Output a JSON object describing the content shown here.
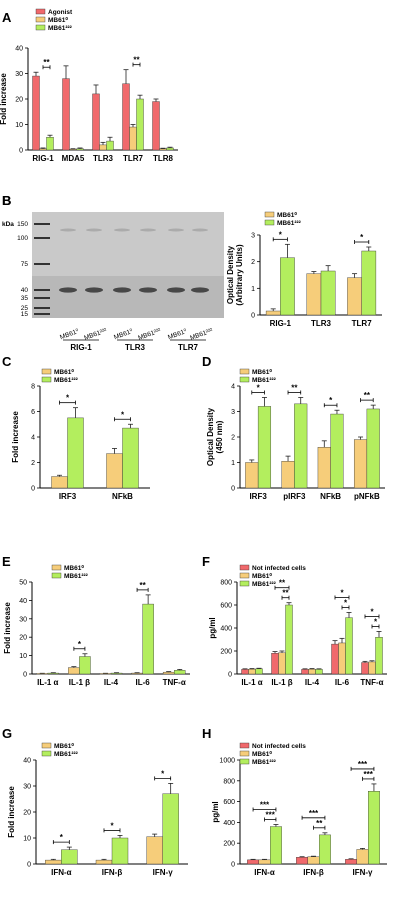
{
  "colors": {
    "agonist": "#f0696c",
    "mb61_0": "#f6cd7a",
    "mb61_222": "#b3ee5e",
    "not_infected": "#f0696c",
    "blot_bg": "#c9c9c9"
  },
  "panels": {
    "A": {
      "label": "A",
      "ylabel": "Fold increase",
      "legend": [
        "Agonist",
        "MB61⁰",
        "MB61²²²"
      ]
    },
    "B": {
      "label": "B",
      "kda_label": "kDa",
      "kda_markers": [
        "150",
        "100",
        "75",
        "40",
        "35",
        "25",
        "15"
      ],
      "lane_labels": [
        "MB61⁰",
        "MB61²²²",
        "MB61⁰",
        "MB61²²²",
        "MB61⁰",
        "MB61²²²"
      ],
      "group_labels": [
        "RIG-1",
        "TLR3",
        "TLR7"
      ],
      "ylabel": "Optical Density (Arbitrary Units)",
      "ylabel_lines": [
        "Optical Density",
        "(Arbitrary Units)"
      ],
      "legend": [
        "MB61⁰",
        "MB61²²²"
      ]
    },
    "C": {
      "label": "C",
      "ylabel": "Fold increase",
      "legend": [
        "MB61⁰",
        "MB61²²²"
      ]
    },
    "D": {
      "label": "D",
      "ylabel": "Optical Density (450 nm)",
      "ylabel_lines": [
        "Optical Density",
        "(450 nm)"
      ],
      "legend": [
        "MB61⁰",
        "MB61²²²"
      ]
    },
    "E": {
      "label": "E",
      "ylabel": "Fold increase",
      "legend": [
        "MB61⁰",
        "MB61²²²"
      ]
    },
    "F": {
      "label": "F",
      "ylabel": "pg/ml",
      "legend": [
        "Not infected cells",
        "MB61⁰",
        "MB61²²²"
      ]
    },
    "G": {
      "label": "G",
      "ylabel": "Fold increase",
      "legend": [
        "MB61⁰",
        "MB61²²²"
      ]
    },
    "H": {
      "label": "H",
      "ylabel": "pg/ml",
      "legend": [
        "Not infected cells",
        "MB61⁰",
        "MB61²²²"
      ]
    }
  },
  "chart_data": [
    {
      "panel": "A",
      "type": "bar",
      "categories": [
        "RIG-1",
        "MDA5",
        "TLR3",
        "TLR7",
        "TLR8"
      ],
      "ylim": [
        0,
        40
      ],
      "yticks": [
        0,
        10,
        20,
        30,
        40
      ],
      "series": [
        {
          "name": "Agonist",
          "values": [
            29,
            28,
            22,
            26,
            19
          ],
          "errors": [
            1.5,
            5,
            3.5,
            5.5,
            1
          ]
        },
        {
          "name": "MB61⁰",
          "values": [
            0.5,
            0.3,
            2,
            9,
            0.5
          ],
          "errors": [
            0.3,
            0.2,
            1,
            1,
            0.2
          ]
        },
        {
          "name": "MB61²²²",
          "values": [
            5,
            0.5,
            3.5,
            20,
            0.8
          ],
          "errors": [
            0.8,
            0.3,
            1.5,
            1.5,
            0.3
          ]
        }
      ],
      "significance": [
        {
          "category": "RIG-1",
          "label": "**"
        },
        {
          "category": "TLR7",
          "label": "**"
        }
      ]
    },
    {
      "panel": "B",
      "type": "bar",
      "categories": [
        "RIG-1",
        "TLR3",
        "TLR7"
      ],
      "ylim": [
        0,
        3
      ],
      "yticks": [
        0,
        1,
        2,
        3
      ],
      "series": [
        {
          "name": "MB61⁰",
          "values": [
            0.15,
            1.55,
            1.4
          ],
          "errors": [
            0.08,
            0.08,
            0.15
          ]
        },
        {
          "name": "MB61²²²",
          "values": [
            2.15,
            1.65,
            2.4
          ],
          "errors": [
            0.5,
            0.2,
            0.15
          ]
        }
      ],
      "significance": [
        {
          "category": "RIG-1",
          "label": "*"
        },
        {
          "category": "TLR7",
          "label": "*"
        }
      ]
    },
    {
      "panel": "C",
      "type": "bar",
      "categories": [
        "IRF3",
        "NFkB"
      ],
      "ylim": [
        0,
        8
      ],
      "yticks": [
        0,
        2,
        4,
        6,
        8
      ],
      "series": [
        {
          "name": "MB61⁰",
          "values": [
            0.9,
            2.7
          ],
          "errors": [
            0.1,
            0.4
          ]
        },
        {
          "name": "MB61²²²",
          "values": [
            5.5,
            4.7
          ],
          "errors": [
            0.8,
            0.3
          ]
        }
      ],
      "significance": [
        {
          "category": "IRF3",
          "label": "*"
        },
        {
          "category": "NFkB",
          "label": "*"
        }
      ]
    },
    {
      "panel": "D",
      "type": "bar",
      "categories": [
        "IRF3",
        "pIRF3",
        "NFkB",
        "pNFkB"
      ],
      "ylim": [
        0,
        4
      ],
      "yticks": [
        0,
        1,
        2,
        3,
        4
      ],
      "series": [
        {
          "name": "MB61⁰",
          "values": [
            1.0,
            1.05,
            1.6,
            1.9
          ],
          "errors": [
            0.1,
            0.2,
            0.25,
            0.1
          ]
        },
        {
          "name": "MB61²²²",
          "values": [
            3.2,
            3.3,
            2.9,
            3.1
          ],
          "errors": [
            0.35,
            0.25,
            0.15,
            0.15
          ]
        }
      ],
      "significance": [
        {
          "category": "IRF3",
          "label": "*"
        },
        {
          "category": "pIRF3",
          "label": "**"
        },
        {
          "category": "NFkB",
          "label": "*"
        },
        {
          "category": "pNFkB",
          "label": "**"
        }
      ]
    },
    {
      "panel": "E",
      "type": "bar",
      "categories": [
        "IL-1 α",
        "IL-1 β",
        "IL-4",
        "IL-6",
        "TNF-α"
      ],
      "ylim": [
        0,
        50
      ],
      "yticks": [
        0,
        10,
        20,
        30,
        40,
        50
      ],
      "series": [
        {
          "name": "MB61⁰",
          "values": [
            0.3,
            3.5,
            0.3,
            0.5,
            1
          ],
          "errors": [
            0.1,
            0.5,
            0.1,
            0.2,
            0.3
          ]
        },
        {
          "name": "MB61²²²",
          "values": [
            0.5,
            9.5,
            0.5,
            38,
            2
          ],
          "errors": [
            0.2,
            1.5,
            0.2,
            5,
            0.5
          ]
        }
      ],
      "significance": [
        {
          "category": "IL-1 β",
          "label": "*"
        },
        {
          "category": "IL-6",
          "label": "**"
        }
      ]
    },
    {
      "panel": "F",
      "type": "bar",
      "categories": [
        "IL-1 α",
        "IL-1 β",
        "IL-4",
        "IL-6",
        "TNF-α"
      ],
      "ylim": [
        0,
        800
      ],
      "yticks": [
        0,
        200,
        400,
        600,
        800
      ],
      "series": [
        {
          "name": "Not infected cells",
          "values": [
            40,
            180,
            40,
            260,
            100
          ],
          "errors": [
            5,
            15,
            5,
            30,
            10
          ]
        },
        {
          "name": "MB61⁰",
          "values": [
            42,
            185,
            42,
            270,
            105
          ],
          "errors": [
            5,
            15,
            5,
            40,
            10
          ]
        },
        {
          "name": "MB61²²²",
          "values": [
            45,
            600,
            40,
            490,
            320
          ],
          "errors": [
            5,
            20,
            5,
            45,
            50
          ]
        }
      ],
      "significance": [
        {
          "category": "IL-1 β",
          "label": "**"
        },
        {
          "category": "IL-1 β",
          "label": "**"
        },
        {
          "category": "IL-6",
          "label": "*"
        },
        {
          "category": "IL-6",
          "label": "*"
        },
        {
          "category": "TNF-α",
          "label": "*"
        },
        {
          "category": "TNF-α",
          "label": "*"
        }
      ]
    },
    {
      "panel": "G",
      "type": "bar",
      "categories": [
        "IFN-α",
        "IFN-β",
        "IFN-γ"
      ],
      "ylim": [
        0,
        40
      ],
      "yticks": [
        0,
        10,
        20,
        30,
        40
      ],
      "series": [
        {
          "name": "MB61⁰",
          "values": [
            1.5,
            1.5,
            10.5
          ],
          "errors": [
            0.3,
            0.3,
            1
          ]
        },
        {
          "name": "MB61²²²",
          "values": [
            5.5,
            10,
            27
          ],
          "errors": [
            1,
            1,
            4
          ]
        }
      ],
      "significance": [
        {
          "category": "IFN-α",
          "label": "*"
        },
        {
          "category": "IFN-β",
          "label": "*"
        },
        {
          "category": "IFN-γ",
          "label": "*"
        }
      ]
    },
    {
      "panel": "H",
      "type": "bar",
      "categories": [
        "IFN-α",
        "IFN-β",
        "IFN-γ"
      ],
      "ylim": [
        0,
        1000
      ],
      "yticks": [
        0,
        200,
        400,
        600,
        800,
        1000
      ],
      "series": [
        {
          "name": "Not infected cells",
          "values": [
            40,
            65,
            45
          ],
          "errors": [
            5,
            5,
            5
          ]
        },
        {
          "name": "MB61⁰",
          "values": [
            40,
            70,
            140
          ],
          "errors": [
            5,
            5,
            10
          ]
        },
        {
          "name": "MB61²²²",
          "values": [
            360,
            280,
            700
          ],
          "errors": [
            20,
            20,
            70
          ]
        }
      ],
      "significance": [
        {
          "category": "IFN-α",
          "label": "***"
        },
        {
          "category": "IFN-α",
          "label": "***"
        },
        {
          "category": "IFN-β",
          "label": "**"
        },
        {
          "category": "IFN-β",
          "label": "***"
        },
        {
          "category": "IFN-γ",
          "label": "***"
        },
        {
          "category": "IFN-γ",
          "label": "***"
        }
      ]
    }
  ]
}
